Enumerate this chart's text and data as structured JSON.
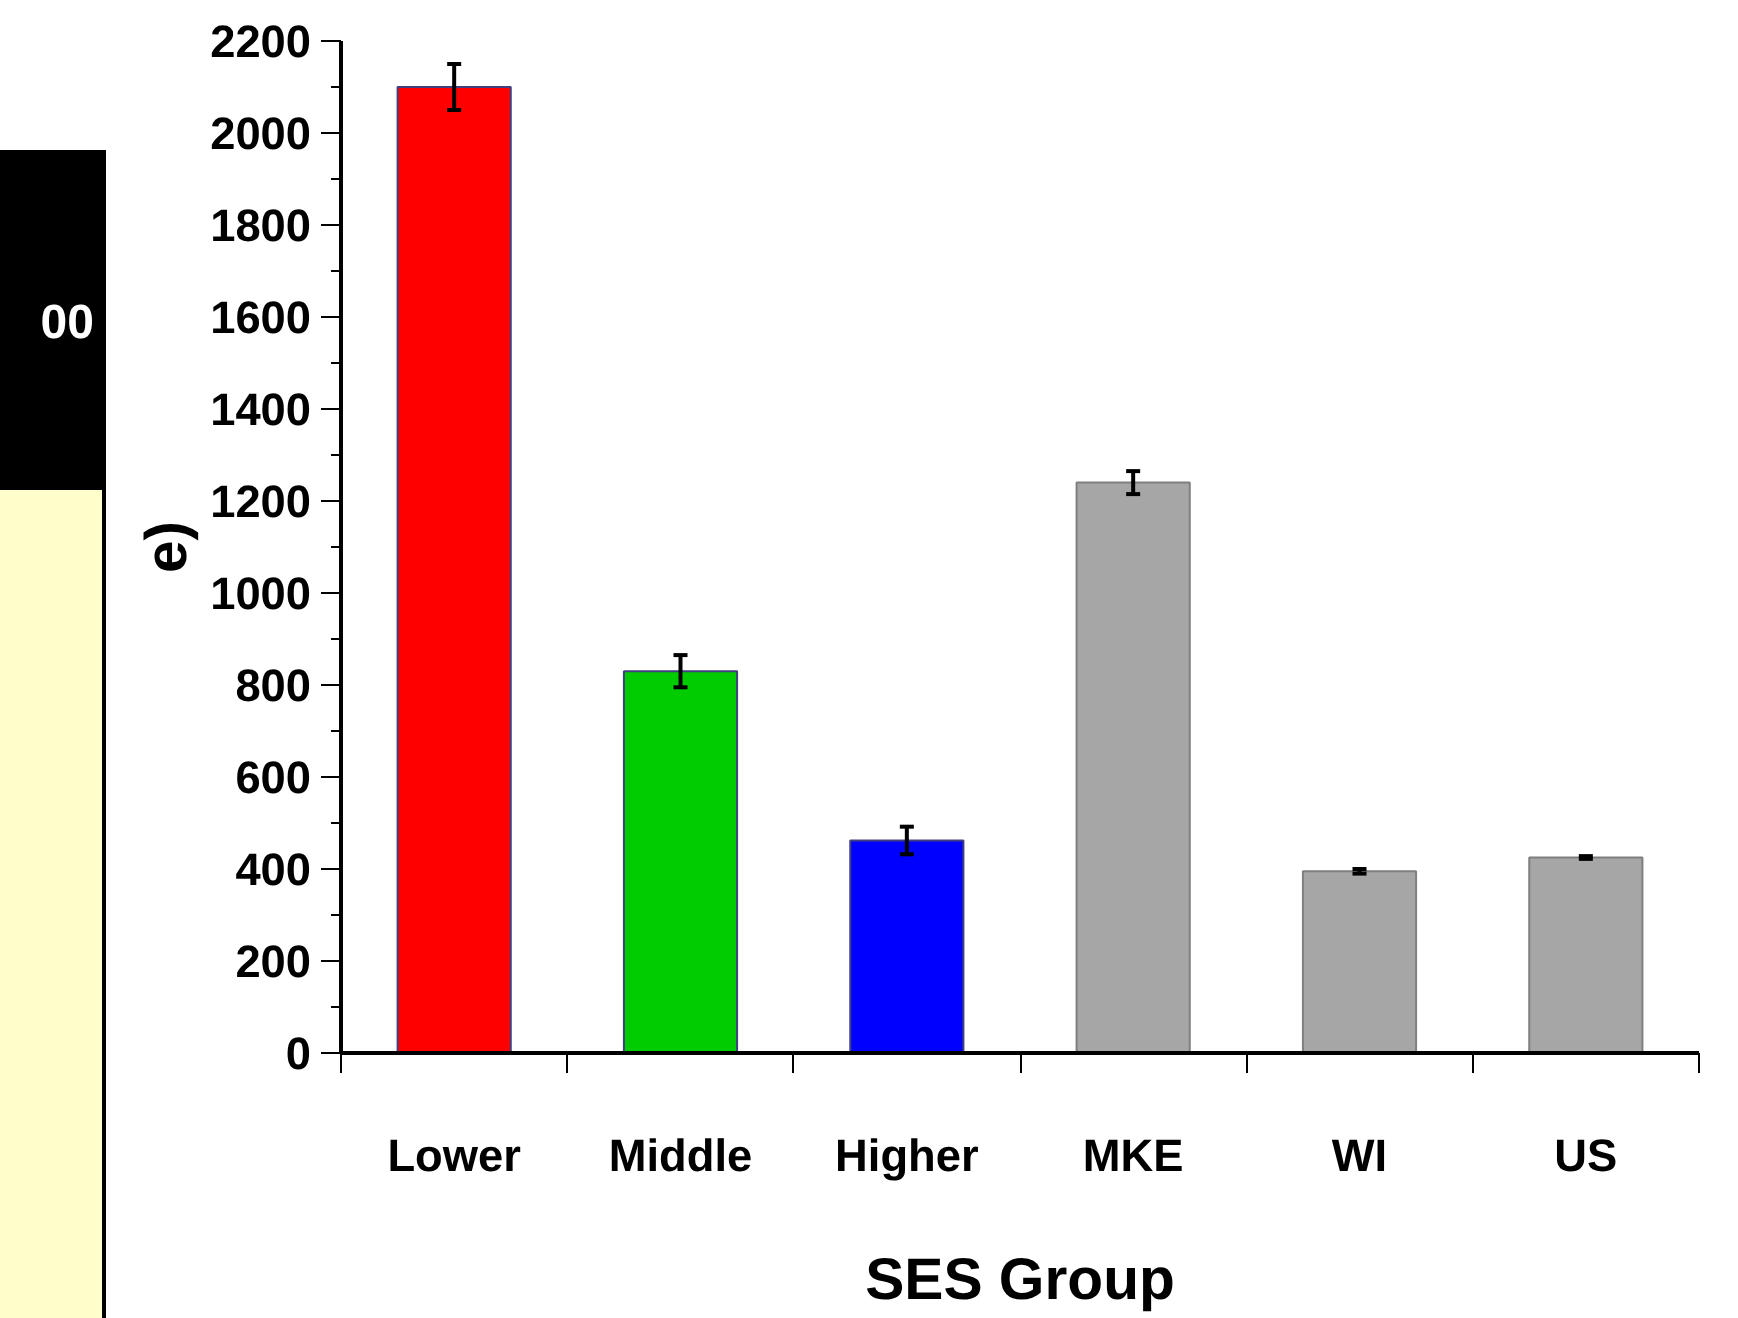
{
  "chart_data": {
    "type": "bar",
    "xlabel": "SES Group",
    "ylabel": "e)",
    "annotations": [
      "00"
    ],
    "categories": [
      "Lower",
      "Middle",
      "Higher",
      "MKE",
      "WI",
      "US"
    ],
    "values": [
      2100,
      830,
      462,
      1240,
      395,
      425
    ],
    "colors": [
      "#ff0000",
      "#00cc00",
      "#0000ff",
      "#a6a6a6",
      "#a6a6a6",
      "#a6a6a6"
    ],
    "errors": [
      50,
      35,
      30,
      25,
      5,
      3
    ],
    "ylim": [
      0,
      2200
    ],
    "yticks": [
      0,
      200,
      400,
      600,
      800,
      1000,
      1200,
      1400,
      1600,
      1800,
      2000,
      2200
    ],
    "grid": false
  }
}
